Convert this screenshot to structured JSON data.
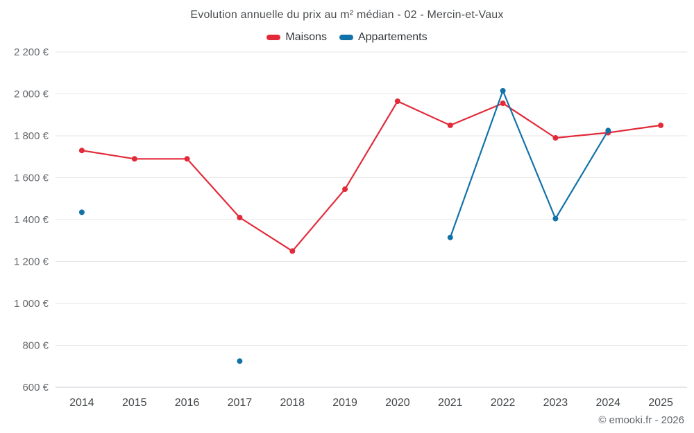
{
  "header": {
    "title": "Evolution annuelle du prix au m² médian - 02 - Mercin-et-Vaux"
  },
  "footer": {
    "credit": "© emooki.fr - 2026"
  },
  "chart_data": {
    "type": "line",
    "title": "Evolution annuelle du prix au m² médian - 02 - Mercin-et-Vaux",
    "categories": [
      "2014",
      "2015",
      "2016",
      "2017",
      "2018",
      "2019",
      "2020",
      "2021",
      "2022",
      "2023",
      "2024",
      "2025"
    ],
    "series": [
      {
        "name": "Maisons",
        "color": "#e22a39",
        "values": [
          1730,
          1690,
          1690,
          1410,
          1250,
          1545,
          1965,
          1850,
          1955,
          1790,
          1815,
          1850
        ]
      },
      {
        "name": "Appartements",
        "color": "#1272a8",
        "values": [
          1435,
          null,
          null,
          725,
          null,
          null,
          null,
          1315,
          2015,
          1405,
          1825,
          null
        ]
      }
    ],
    "xlabel": "",
    "ylabel": "",
    "ylim": [
      600,
      2200
    ],
    "ytick_step": 200,
    "ytick_labels": [
      "600 €",
      "800 €",
      "1 000 €",
      "1 200 €",
      "1 400 €",
      "1 600 €",
      "1 800 €",
      "2 000 €",
      "2 200 €"
    ],
    "grid": "horizontal",
    "legend_position": "top",
    "marker_radius": 4,
    "line_width": 2.2
  }
}
